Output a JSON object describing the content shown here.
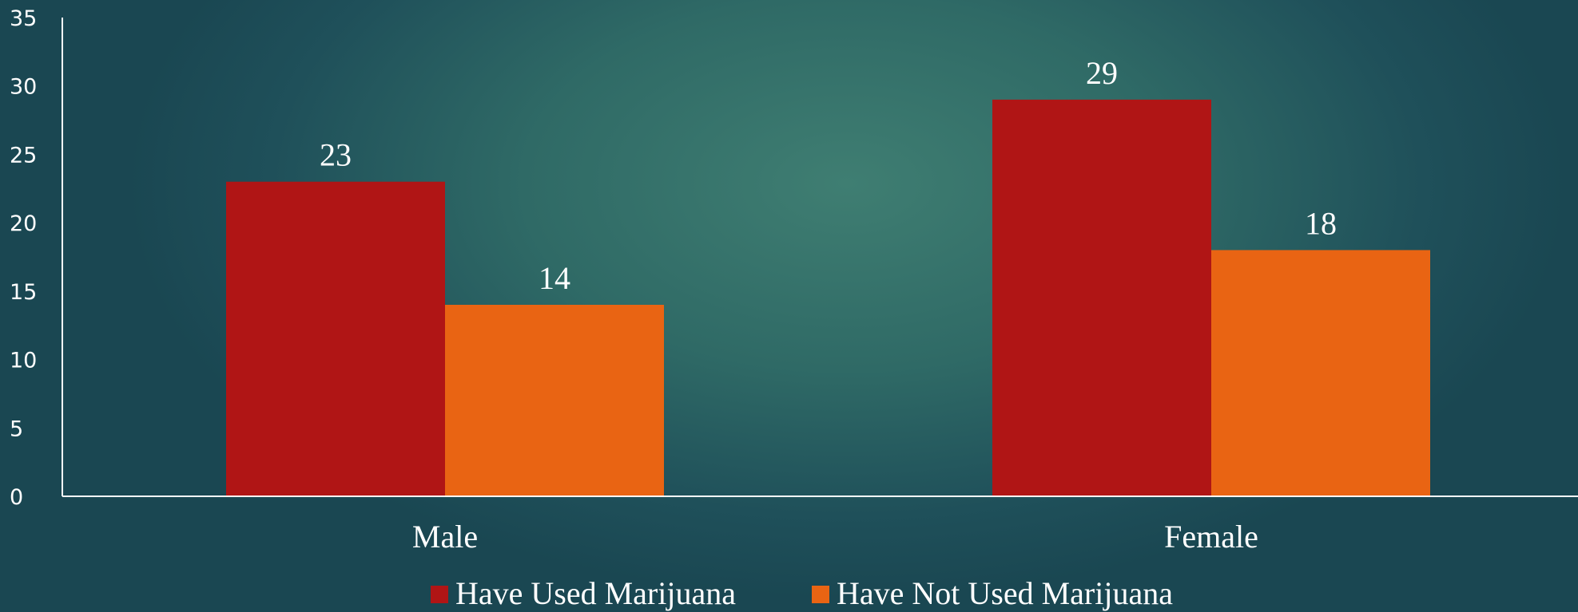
{
  "chart_data": {
    "type": "bar",
    "title": "",
    "xlabel": "",
    "ylabel": "",
    "categories": [
      "Male",
      "Female"
    ],
    "series": [
      {
        "name": "Have Used Marijuana",
        "values": [
          23,
          29
        ],
        "color": "#b01515"
      },
      {
        "name": "Have Not Used Marijuana",
        "values": [
          14,
          18
        ],
        "color": "#e96413"
      }
    ],
    "ylim": [
      0,
      35
    ],
    "yticks": [
      0,
      5,
      10,
      15,
      20,
      25,
      30,
      35
    ],
    "grid": false,
    "legend": "bottom",
    "axis_color": "#ffffff"
  }
}
